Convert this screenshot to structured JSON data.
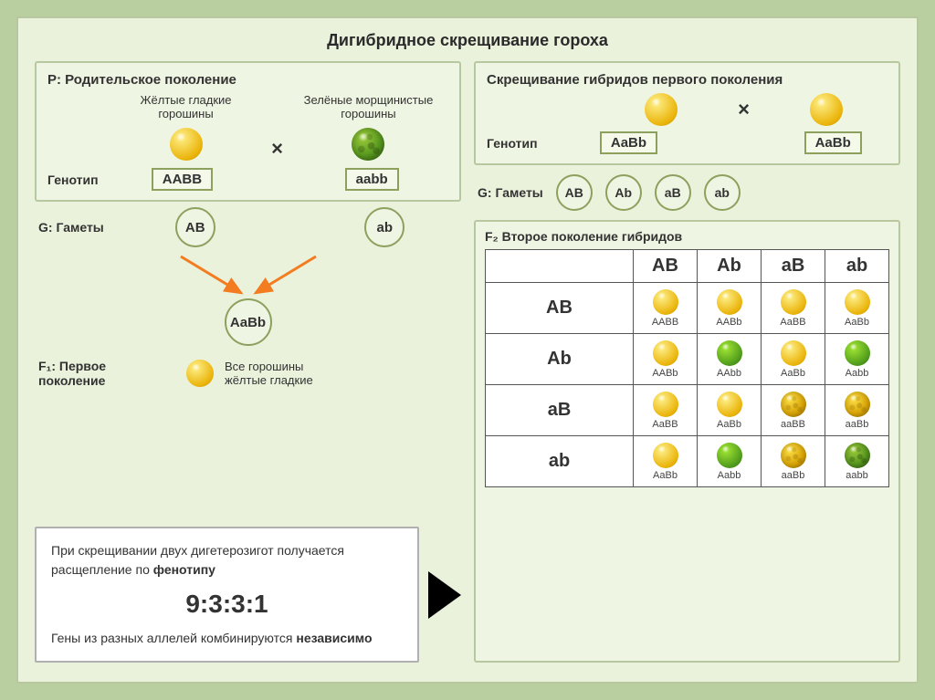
{
  "title": "Дигибридное скрещивание гороха",
  "colors": {
    "page_bg": "#b9cfa0",
    "panel_bg": "#eaf2dc",
    "inner_panel_bg": "#eef5e2",
    "border": "#b7c8a0",
    "accent_border": "#8da05e",
    "arrow": "#f47c20",
    "text": "#2a2a2a"
  },
  "left": {
    "p_panel_title": "P: Родительское поколение",
    "parent1": {
      "label": "Жёлтые гладкие\nгорошины",
      "genotype": "AABB",
      "phenotype": "yellow-smooth"
    },
    "parent2": {
      "label": "Зелёные морщинистые\nгорошины",
      "genotype": "aabb",
      "phenotype": "green-wrinkled"
    },
    "genotype_label": "Генотип",
    "gametes_label": "G: Гаметы",
    "gametes": [
      "AB",
      "ab"
    ],
    "f1_circle": "AaBb",
    "f1_label": "F₁: Первое поколение",
    "f1_desc": "Все горошины\nжёлтые гладкие",
    "f1_phenotype": "yellow-smooth",
    "result": {
      "line1": "При скрещивании двух дигетерозигот получается расщепление по ",
      "bold1": "фенотипу",
      "ratio": "9:3:3:1",
      "line2": "Гены из разных аллелей комбинируются ",
      "bold2": "независимо"
    }
  },
  "right": {
    "cross_panel_title": "Скрещивание гибридов первого поколения",
    "parent_phenotype": "yellow-smooth",
    "genotype_label": "Генотип",
    "genotype": "AaBb",
    "gametes_label": "G: Гаметы",
    "gametes": [
      "AB",
      "Ab",
      "aB",
      "ab"
    ],
    "f2_title": "F₂ Второе поколение гибридов",
    "punnett": {
      "cols": [
        "AB",
        "Ab",
        "aB",
        "ab"
      ],
      "rows": [
        "AB",
        "Ab",
        "aB",
        "ab"
      ],
      "cells": [
        [
          {
            "g": "AABB",
            "p": "yellow-smooth"
          },
          {
            "g": "AABb",
            "p": "yellow-smooth"
          },
          {
            "g": "AaBB",
            "p": "yellow-smooth"
          },
          {
            "g": "AaBb",
            "p": "yellow-smooth"
          }
        ],
        [
          {
            "g": "AABb",
            "p": "yellow-smooth"
          },
          {
            "g": "AAbb",
            "p": "green-smooth"
          },
          {
            "g": "AaBb",
            "p": "yellow-smooth"
          },
          {
            "g": "Aabb",
            "p": "green-smooth"
          }
        ],
        [
          {
            "g": "AaBB",
            "p": "yellow-smooth"
          },
          {
            "g": "AaBb",
            "p": "yellow-smooth"
          },
          {
            "g": "aaBB",
            "p": "yellow-wrinkled"
          },
          {
            "g": "aaBb",
            "p": "yellow-wrinkled"
          }
        ],
        [
          {
            "g": "AaBb",
            "p": "yellow-smooth"
          },
          {
            "g": "Aabb",
            "p": "green-smooth"
          },
          {
            "g": "aaBb",
            "p": "yellow-wrinkled"
          },
          {
            "g": "aabb",
            "p": "green-wrinkled"
          }
        ]
      ]
    }
  }
}
